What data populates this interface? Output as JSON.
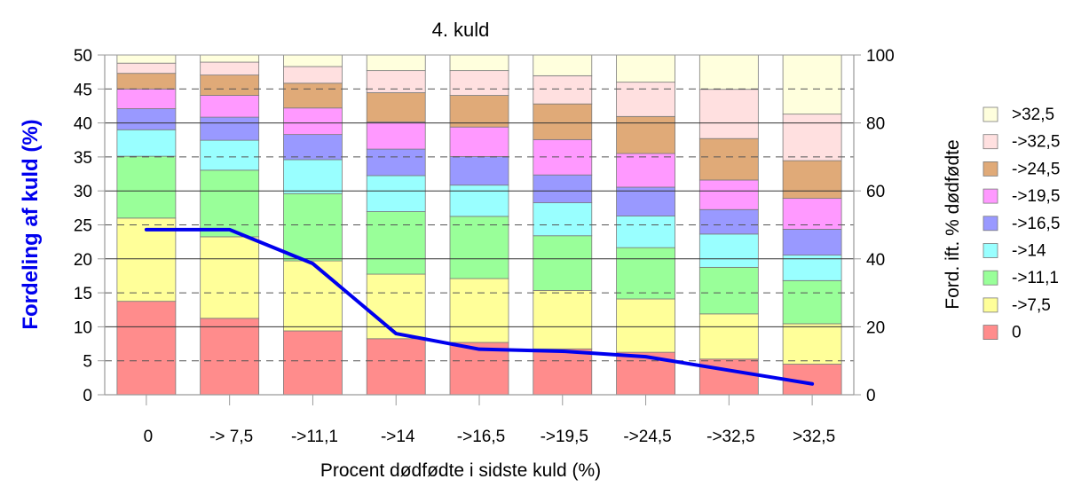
{
  "chart_data": {
    "type": "bar",
    "title": "4. kuld",
    "xlabel": "Procent dødfødte i sidste kuld (%)",
    "ylabel_left": "Fordeling af kuld (%)",
    "ylabel_right": "Ford. ift. % dødfødte",
    "ylim_left": [
      0,
      50
    ],
    "ylim_right": [
      0,
      100
    ],
    "yticks_left": [
      "0",
      "5",
      "10",
      "15",
      "20",
      "25",
      "30",
      "35",
      "40",
      "45",
      "50"
    ],
    "yticks_right": [
      "0",
      "20",
      "40",
      "60",
      "80",
      "100"
    ],
    "categories": [
      "0",
      "-> 7,5",
      "->11,1",
      "->14",
      "->16,5",
      "->19,5",
      "->24,5",
      "->32,5",
      ">32,5"
    ],
    "stacked": true,
    "grid": true,
    "legend_position": "right",
    "series": [
      {
        "name": "0",
        "color": "#ff8c8c",
        "values": [
          27.5,
          22.5,
          18.8,
          16.5,
          15.4,
          13.5,
          12.5,
          10.5,
          9.0
        ]
      },
      {
        "name": "->7,5",
        "color": "#ffff99",
        "values": [
          24.5,
          24.0,
          20.6,
          19.0,
          18.8,
          17.2,
          15.7,
          13.3,
          11.9
        ]
      },
      {
        "name": "->11,1",
        "color": "#99ff99",
        "values": [
          18.2,
          19.6,
          19.8,
          18.4,
          18.3,
          16.1,
          15.1,
          13.7,
          12.7
        ]
      },
      {
        "name": "->14",
        "color": "#99ffff",
        "values": [
          7.8,
          8.8,
          10.0,
          10.6,
          9.2,
          9.7,
          9.3,
          9.8,
          7.5
        ]
      },
      {
        "name": "->16,5",
        "color": "#9999ff",
        "values": [
          6.2,
          6.8,
          7.4,
          7.8,
          8.4,
          8.2,
          8.5,
          7.2,
          7.6
        ]
      },
      {
        "name": "->19,5",
        "color": "#ff99ff",
        "values": [
          5.8,
          6.4,
          7.8,
          8.0,
          8.7,
          10.4,
          9.9,
          8.7,
          9.1
        ]
      },
      {
        "name": "->24,5",
        "color": "#e0aa78",
        "values": [
          4.6,
          6.0,
          7.3,
          8.6,
          9.3,
          10.5,
          10.9,
          12.2,
          11.1
        ]
      },
      {
        "name": "->32,5",
        "color": "#ffe0e0",
        "values": [
          3.0,
          3.8,
          4.9,
          6.5,
          7.3,
          8.3,
          10.1,
          14.5,
          13.7
        ]
      },
      {
        "name": ">32,5",
        "color": "#ffffdd",
        "values": [
          2.4,
          2.1,
          3.4,
          4.6,
          4.6,
          6.1,
          8.0,
          10.1,
          17.4
        ]
      }
    ],
    "line": {
      "axis": "left",
      "color": "#0000ee",
      "values": [
        24.3,
        24.3,
        19.3,
        9.0,
        6.7,
        6.4,
        5.6,
        3.6,
        1.6
      ]
    }
  }
}
